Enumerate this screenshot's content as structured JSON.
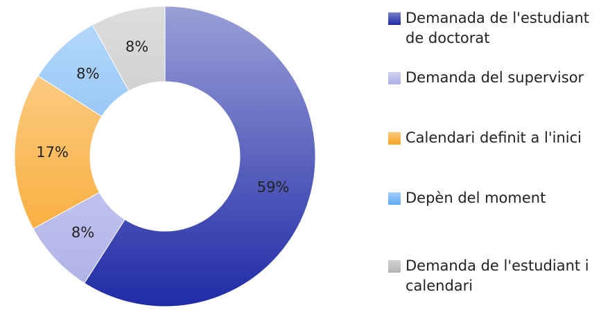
{
  "chart_data": {
    "type": "donut",
    "categories": [
      "Demanada de l'estudiant de doctorat",
      "Demanda del supervisor",
      "Calendari definit a l'inici",
      "Depèn del moment",
      "Demanda de l'estudiant i calendari"
    ],
    "values": [
      59,
      8,
      17,
      8,
      8
    ],
    "value_labels": [
      "59%",
      "8%",
      "17%",
      "8%",
      "8%"
    ],
    "colors": [
      "#1f2aa6",
      "#aeb0e8",
      "#f9a323",
      "#62acf4",
      "#b4b4b4"
    ]
  }
}
